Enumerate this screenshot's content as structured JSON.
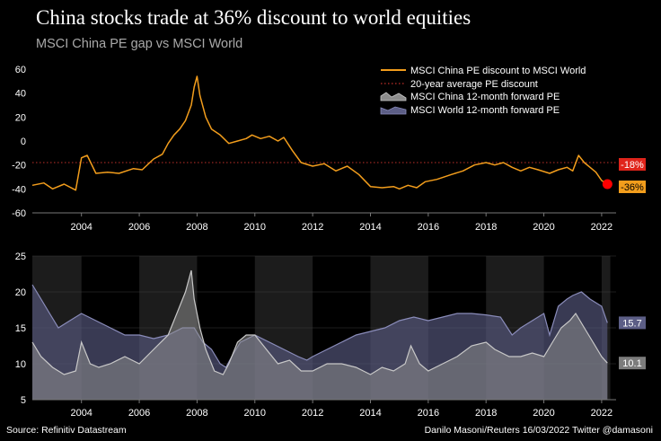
{
  "header": {
    "title": "China stocks trade at 36% discount to world equities",
    "subtitle": "MSCI China PE gap vs MSCI World"
  },
  "footer": {
    "source": "Source: Refinitiv Datastream",
    "credit": "Danilo Masoni/Reuters 16/03/2022 Twitter @damasoni"
  },
  "colors": {
    "discount": "#f29d1c",
    "average": "#c0302a",
    "china_pe": "#8c8c8c",
    "world_pe": "#5c5e86",
    "marker": "#ff0000",
    "shade": "#1c1c1c"
  },
  "chart_data": [
    {
      "type": "line",
      "title": "MSCI China PE gap vs MSCI World",
      "ylim": [
        -60,
        60
      ],
      "yticks": [
        60,
        40,
        20,
        0,
        -20,
        -40,
        -60
      ],
      "xlim": [
        2002.3,
        2022.5
      ],
      "xticks": [
        2004,
        2006,
        2008,
        2010,
        2012,
        2014,
        2016,
        2018,
        2020,
        2022
      ],
      "legend": [
        "MSCI China PE discount to MSCI World",
        "20-year average PE discount",
        "MSCI China 12-month forward PE",
        "MSCI World 12-month forward PE"
      ],
      "series": [
        {
          "name": "MSCI China PE discount to MSCI World",
          "x": [
            2002.3,
            2002.7,
            2003.0,
            2003.4,
            2003.8,
            2004.0,
            2004.2,
            2004.5,
            2004.9,
            2005.3,
            2005.8,
            2006.1,
            2006.5,
            2006.8,
            2007.0,
            2007.2,
            2007.4,
            2007.6,
            2007.8,
            2007.9,
            2008.0,
            2008.1,
            2008.3,
            2008.5,
            2008.8,
            2009.1,
            2009.4,
            2009.7,
            2009.9,
            2010.2,
            2010.5,
            2010.8,
            2011.0,
            2011.3,
            2011.6,
            2012.0,
            2012.4,
            2012.8,
            2013.2,
            2013.6,
            2014.0,
            2014.4,
            2014.8,
            2015.0,
            2015.3,
            2015.6,
            2015.9,
            2016.3,
            2016.8,
            2017.2,
            2017.6,
            2018.0,
            2018.3,
            2018.6,
            2018.9,
            2019.2,
            2019.5,
            2019.8,
            2020.2,
            2020.5,
            2020.8,
            2021.0,
            2021.2,
            2021.4,
            2021.6,
            2021.8,
            2022.0,
            2022.2
          ],
          "values": [
            -37,
            -35,
            -40,
            -36,
            -41,
            -14,
            -12,
            -27,
            -26,
            -27,
            -23,
            -24,
            -15,
            -11,
            -2,
            5,
            10,
            17,
            30,
            45,
            54,
            38,
            20,
            10,
            5,
            -2,
            0,
            2,
            5,
            2,
            4,
            0,
            3,
            -8,
            -18,
            -21,
            -19,
            -25,
            -21,
            -28,
            -38,
            -39,
            -38,
            -40,
            -37,
            -39,
            -34,
            -32,
            -28,
            -25,
            -20,
            -18,
            -20,
            -18,
            -22,
            -25,
            -22,
            -24,
            -27,
            -24,
            -22,
            -25,
            -12,
            -18,
            -22,
            -26,
            -33,
            -36
          ]
        },
        {
          "name": "20-year average PE discount",
          "x": [
            2002.3,
            2022.5
          ],
          "values": [
            -18,
            -18
          ]
        }
      ],
      "labels": [
        {
          "text": "-18%",
          "value": -18
        },
        {
          "text": "-36%",
          "value": -36
        }
      ]
    },
    {
      "type": "area",
      "title": "12-month forward PE",
      "ylim": [
        5,
        25
      ],
      "yticks": [
        25,
        20,
        15,
        10,
        5
      ],
      "xlim": [
        2002.3,
        2022.5
      ],
      "xticks": [
        2004,
        2006,
        2008,
        2010,
        2012,
        2014,
        2016,
        2018,
        2020,
        2022
      ],
      "recession_bands": [
        [
          2002.3,
          2004.0
        ],
        [
          2006.0,
          2008.0
        ],
        [
          2010.0,
          2012.0
        ],
        [
          2014.0,
          2016.0
        ],
        [
          2018.0,
          2020.0
        ],
        [
          2022.0,
          2022.3
        ]
      ],
      "series": [
        {
          "name": "MSCI World 12-month forward PE",
          "x": [
            2002.3,
            2002.6,
            2002.9,
            2003.2,
            2003.6,
            2004.0,
            2004.5,
            2005.0,
            2005.5,
            2006.0,
            2006.5,
            2007.0,
            2007.5,
            2007.9,
            2008.2,
            2008.5,
            2008.8,
            2009.0,
            2009.2,
            2009.5,
            2010.0,
            2010.5,
            2011.0,
            2011.5,
            2011.8,
            2012.0,
            2012.5,
            2013.0,
            2013.5,
            2014.0,
            2014.5,
            2015.0,
            2015.5,
            2016.0,
            2016.5,
            2017.0,
            2017.5,
            2018.0,
            2018.5,
            2018.9,
            2019.2,
            2019.6,
            2020.0,
            2020.2,
            2020.5,
            2020.8,
            2021.0,
            2021.3,
            2021.6,
            2022.0,
            2022.2
          ],
          "values": [
            21,
            19,
            17,
            15,
            16,
            17,
            16,
            15,
            14,
            14,
            13.5,
            14,
            15,
            15,
            13,
            12,
            10,
            9.5,
            11,
            13,
            14,
            13,
            12,
            11,
            10.5,
            11,
            12,
            13,
            14,
            14.5,
            15,
            16,
            16.5,
            16,
            16.5,
            17,
            17,
            16.8,
            16.5,
            14,
            15,
            16,
            17,
            14,
            18,
            19,
            19.5,
            20,
            19,
            18,
            15.7
          ]
        },
        {
          "name": "MSCI China 12-month forward PE",
          "x": [
            2002.3,
            2002.6,
            2003.0,
            2003.4,
            2003.8,
            2004.0,
            2004.3,
            2004.6,
            2005.0,
            2005.5,
            2006.0,
            2006.5,
            2007.0,
            2007.3,
            2007.6,
            2007.8,
            2007.9,
            2008.1,
            2008.3,
            2008.6,
            2008.9,
            2009.1,
            2009.4,
            2009.7,
            2010.0,
            2010.4,
            2010.8,
            2011.2,
            2011.6,
            2012.0,
            2012.5,
            2013.0,
            2013.5,
            2014.0,
            2014.4,
            2014.8,
            2015.2,
            2015.4,
            2015.7,
            2016.0,
            2016.5,
            2017.0,
            2017.5,
            2018.0,
            2018.3,
            2018.8,
            2019.2,
            2019.6,
            2020.0,
            2020.3,
            2020.6,
            2020.9,
            2021.1,
            2021.4,
            2021.7,
            2022.0,
            2022.2
          ],
          "values": [
            13,
            11,
            9.5,
            8.5,
            9,
            13,
            10,
            9.5,
            10,
            11,
            10,
            12,
            14,
            17,
            20,
            23,
            19,
            15,
            12,
            9,
            8.5,
            10,
            13,
            14,
            14,
            12,
            10,
            10.5,
            9,
            9,
            10,
            10,
            9.5,
            8.5,
            9.5,
            9,
            10,
            12.5,
            10,
            9,
            10,
            11,
            12.5,
            13,
            12,
            11,
            11,
            11.5,
            11,
            13,
            15,
            16,
            17,
            15,
            13,
            11,
            10.1
          ]
        }
      ],
      "labels": [
        {
          "text": "15.7",
          "value": 15.7
        },
        {
          "text": "10.1",
          "value": 10.1
        }
      ]
    }
  ]
}
